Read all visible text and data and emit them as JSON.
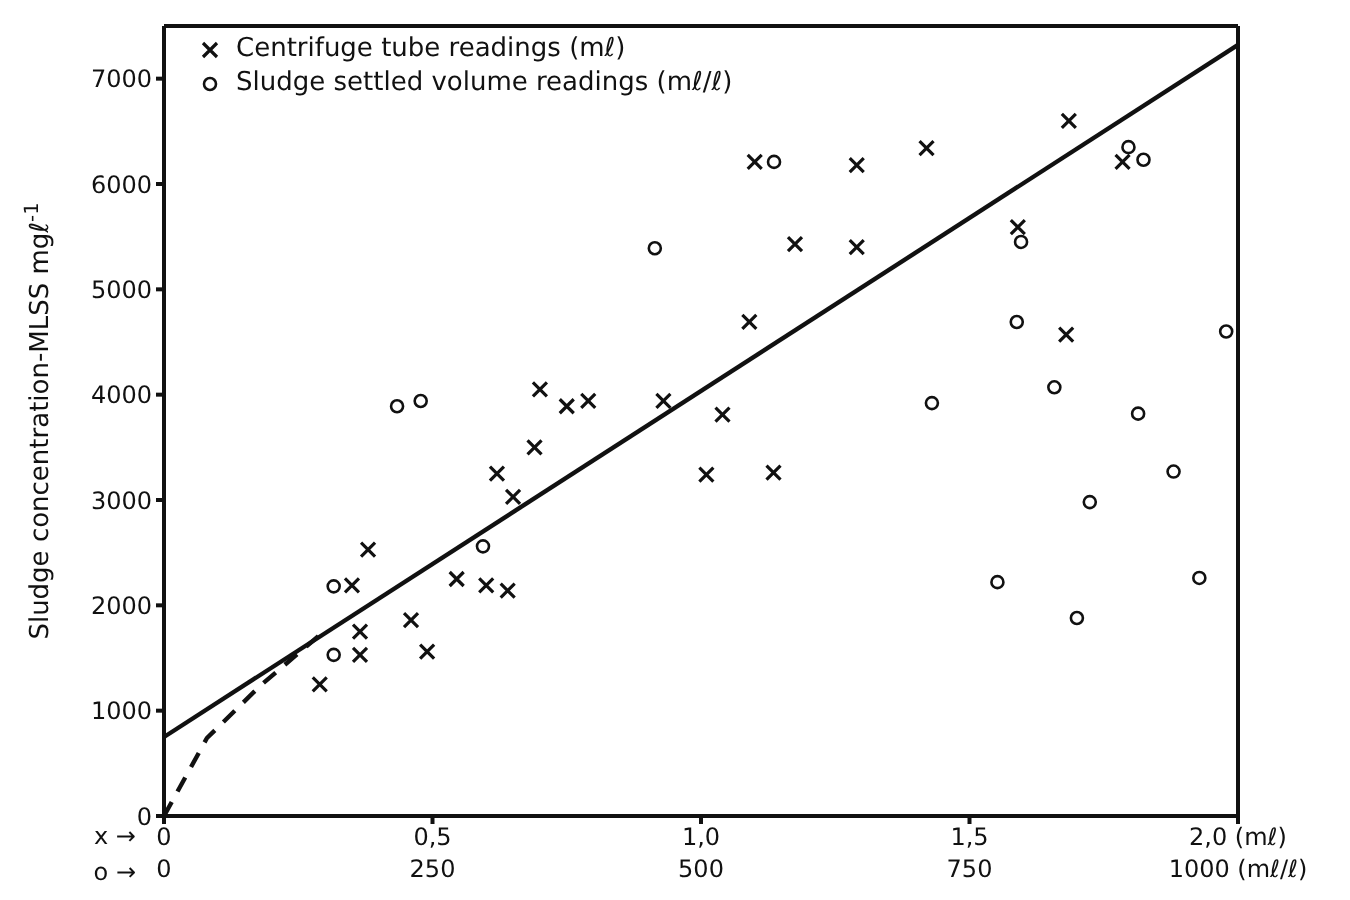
{
  "chart_data": {
    "type": "scatter",
    "xlabel": "x →",
    "x2label": "o →",
    "ylabel": "Sludge concentration-MLSS mgℓ$^{-1}$",
    "xlim": [
      0,
      2
    ],
    "xticks": [
      0,
      {
        "value": 0.5,
        "label": "0,5"
      },
      {
        "value": 1,
        "label": "1,0"
      },
      {
        "value": 1.5,
        "label": "1,5"
      },
      {
        "value": 2,
        "label": "2,0 (mℓ)"
      }
    ],
    "x2lim": [
      0,
      1000
    ],
    "x2ticks": [
      0,
      250,
      500,
      750,
      {
        "value": 1000,
        "label": "1000 (mℓ/ℓ)"
      }
    ],
    "ylim": [
      0,
      7500
    ],
    "yticks": [
      0,
      1000,
      2000,
      3000,
      4000,
      5000,
      6000,
      7000
    ],
    "legend": "top left",
    "series": [
      {
        "name": "Centrifuge tube readings (mℓ)",
        "marker": "cross",
        "color": "#111111",
        "x": [
          0.29,
          0.35,
          0.365,
          0.365,
          0.38,
          0.46,
          0.49,
          0.545,
          0.6,
          0.64,
          0.62,
          0.65,
          0.69,
          0.7,
          0.75,
          0.79,
          0.93,
          1.04,
          1.01,
          1.09,
          1.135,
          1.1,
          1.175,
          1.29,
          1.29,
          1.42,
          1.685,
          1.785,
          1.59,
          1.68
        ],
        "values": [
          1250,
          2190,
          1750,
          1530,
          2530,
          1860,
          1560,
          2250,
          2190,
          2140,
          3250,
          3030,
          3500,
          4050,
          3890,
          3940,
          3940,
          3810,
          3240,
          4690,
          3260,
          6210,
          5430,
          6180,
          5400,
          6340,
          6600,
          6210,
          5590,
          4570
        ]
      },
      {
        "name": "Sludge settled volume readings (mℓ/ℓ)",
        "marker": "circle",
        "axis": "x2",
        "color": "#111111",
        "x": [
          158,
          158,
          217,
          239,
          297,
          457,
          568,
          798,
          794,
          715,
          829,
          907,
          898,
          912,
          989,
          940,
          862,
          776,
          964,
          850
        ],
        "values": [
          2180,
          1530,
          3890,
          3940,
          2560,
          5390,
          6210,
          5450,
          4690,
          3920,
          4070,
          3820,
          6350,
          6230,
          4600,
          3270,
          2980,
          2220,
          2260,
          1880
        ]
      },
      {
        "type": "line",
        "marker": "none",
        "line_style": "solid",
        "color": "#111111",
        "x": [
          0,
          2
        ],
        "values": [
          750,
          7320
        ]
      },
      {
        "type": "line",
        "marker": "none",
        "line_style": "dashed",
        "color": "#111111",
        "x": [
          0,
          0.08,
          0.18,
          0.295
        ],
        "values": [
          0,
          740,
          1240,
          1740
        ]
      }
    ]
  }
}
